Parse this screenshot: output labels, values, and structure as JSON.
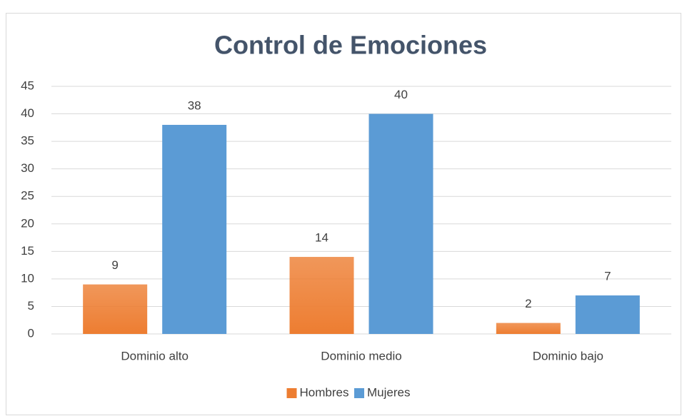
{
  "chart_data": {
    "type": "bar",
    "title": "Control de Emociones",
    "categories": [
      "Dominio alto",
      "Dominio medio",
      "Dominio bajo"
    ],
    "series": [
      {
        "name": "Hombres",
        "color": "#ed7d31",
        "values": [
          9,
          14,
          2
        ]
      },
      {
        "name": "Mujeres",
        "color": "#5b9bd5",
        "values": [
          38,
          40,
          7
        ]
      }
    ],
    "ylim": [
      0,
      45
    ],
    "yticks": [
      0,
      5,
      10,
      15,
      20,
      25,
      30,
      35,
      40,
      45
    ],
    "grid": true,
    "legend": "bottom"
  }
}
